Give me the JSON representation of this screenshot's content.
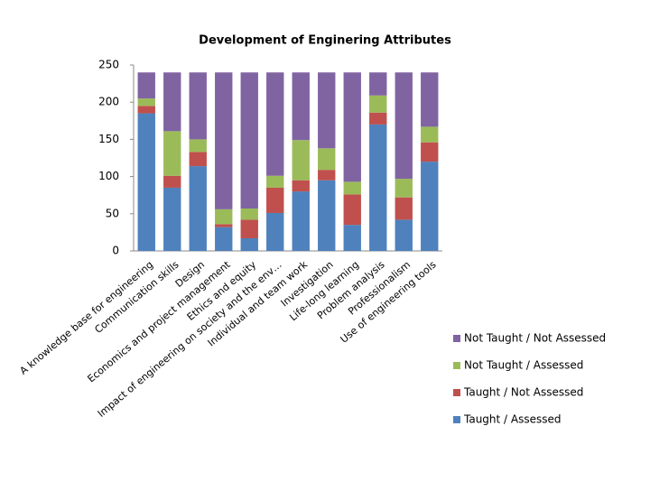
{
  "chart_data": {
    "type": "stacked_bar",
    "title": "Development of Enginering Attributes",
    "categories": [
      "A knowledge base for engineering",
      "Communication skills",
      "Design",
      "Economics and project management",
      "Ethics and equity",
      "Impact of engineering on society and the env…",
      "Individual and team work",
      "Investigation",
      "Life-long learning",
      "Problem analysis",
      "Professionalism",
      "Use of engineering tools"
    ],
    "series": [
      {
        "name": "Taught / Assessed",
        "color": "#4f81bd",
        "values": [
          185,
          85,
          114,
          32,
          17,
          51,
          80,
          95,
          35,
          170,
          42,
          120
        ]
      },
      {
        "name": "Taught / Not Assessed",
        "color": "#c0504d",
        "values": [
          10,
          16,
          19,
          4,
          25,
          34,
          15,
          14,
          41,
          16,
          30,
          26
        ]
      },
      {
        "name": "Not Taught / Assessed",
        "color": "#9bbb59",
        "values": [
          10,
          60,
          17,
          20,
          15,
          16,
          54,
          29,
          17,
          23,
          25,
          21
        ]
      },
      {
        "name": "Not Taught / Not Assessed",
        "color": "#8064a2",
        "values": [
          35,
          79,
          90,
          184,
          183,
          139,
          91,
          102,
          147,
          31,
          143,
          73
        ]
      }
    ],
    "ylim": [
      0,
      250
    ],
    "yticks": [
      0,
      50,
      100,
      150,
      200,
      250
    ],
    "grid": false,
    "legend": "right"
  }
}
